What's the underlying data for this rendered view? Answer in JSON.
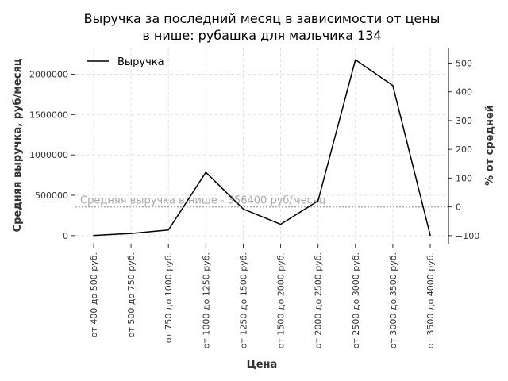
{
  "chart_data": {
    "type": "line",
    "title_line1": "Выручка за последний месяц в зависимости от цены",
    "title_line2": "в нише: рубашка для мальчика 134",
    "xlabel": "Цена",
    "ylabel": "Средняя выручка, руб/месяц",
    "ylabel_right": "% от средней",
    "categories": [
      "от 400 до 500 руб.",
      "от 500 до 750 руб.",
      "от 750 до 1000 руб.",
      "от 1000 до 1250 руб.",
      "от 1250 до 1500 руб.",
      "от 1500 до 2000 руб.",
      "от 2000 до 2500 руб.",
      "от 2500 до 3000 руб.",
      "от 3000 до 3500 руб.",
      "от 3500 до 4000 руб."
    ],
    "series": [
      {
        "name": "Выручка",
        "values": [
          2000,
          27000,
          70000,
          785000,
          330000,
          140000,
          430000,
          2180000,
          1860000,
          5000
        ]
      }
    ],
    "ylim": [
      -100000,
      2330000
    ],
    "yticks": [
      0,
      500000,
      1000000,
      1500000,
      2000000
    ],
    "ytick_labels": [
      "0",
      "500000",
      "1000000",
      "1500000",
      "2000000"
    ],
    "yticks_right": [
      -100,
      0,
      100,
      200,
      300,
      400,
      500
    ],
    "yticks_right_labels": [
      "−100",
      "0",
      "100",
      "200",
      "300",
      "400",
      "500"
    ],
    "average": 356400,
    "average_label": "Средняя выручка в нише - 356400 руб/месяц",
    "legend_position": "top-left",
    "grid": true,
    "colors": {
      "line": "#000000",
      "average": "#aaaaaa",
      "grid": "#e3e3e3"
    }
  }
}
